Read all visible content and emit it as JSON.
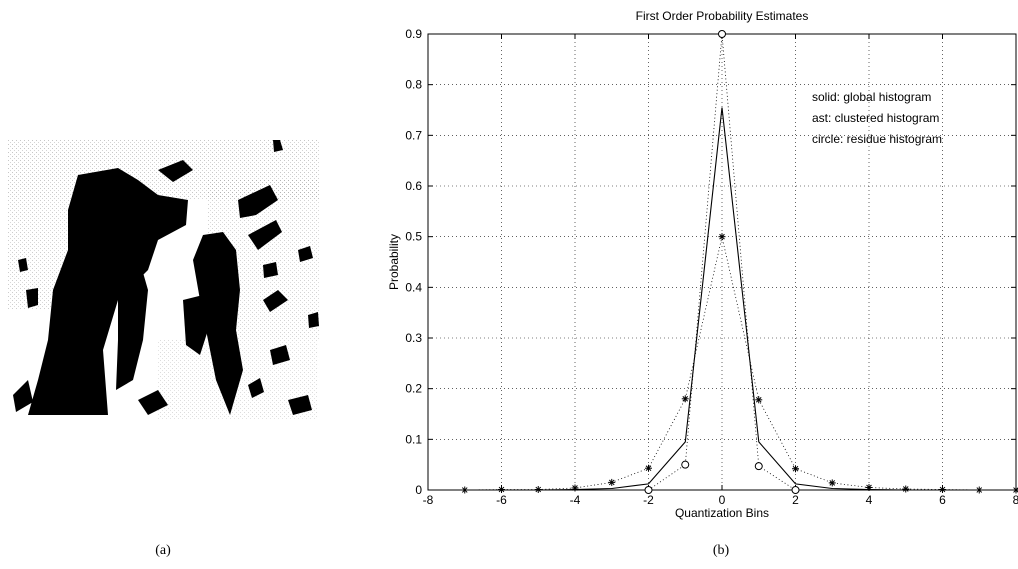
{
  "panels": {
    "a": {
      "caption": "(a)"
    },
    "b": {
      "caption": "(b)"
    }
  },
  "chart_data": {
    "type": "line",
    "title": "First Order Probability Estimates",
    "xlabel": "Quantization Bins",
    "ylabel": "Probability",
    "xlim": [
      -8,
      8
    ],
    "ylim": [
      0,
      0.9
    ],
    "x_ticks": [
      -8,
      -6,
      -4,
      -2,
      0,
      2,
      4,
      6,
      8
    ],
    "x_tick_labels": [
      "-8",
      "-6",
      "-4",
      "-2",
      "0",
      "2",
      "4",
      "6",
      "8"
    ],
    "y_ticks": [
      0,
      0.1,
      0.2,
      0.3,
      0.4,
      0.5,
      0.6,
      0.7,
      0.8,
      0.9
    ],
    "y_tick_labels": [
      "0",
      "0.1",
      "0.2",
      "0.3",
      "0.4",
      "0.5",
      "0.6",
      "0.7",
      "0.8",
      "0.9"
    ],
    "grid": true,
    "legend_position": "top-right",
    "annotations": [
      "solid: global histogram",
      "ast: clustered histogram",
      "circle: residue histogram"
    ],
    "series": [
      {
        "style": "solid",
        "x": [
          -8,
          -7,
          -6,
          -5,
          -4,
          -3,
          -2,
          -1,
          0,
          1,
          2,
          3,
          4,
          5,
          6,
          7,
          8
        ],
        "values": [
          0,
          0,
          0,
          0,
          0.001,
          0.003,
          0.012,
          0.095,
          0.755,
          0.095,
          0.012,
          0.003,
          0.001,
          0,
          0,
          0,
          0
        ]
      },
      {
        "style": "dotted-asterisk",
        "x": [
          -7,
          -6,
          -5,
          -4,
          -3,
          -2,
          -1,
          0,
          1,
          2,
          3,
          4,
          5,
          6,
          7,
          8
        ],
        "values": [
          0,
          0.001,
          0.001,
          0.004,
          0.015,
          0.043,
          0.18,
          0.5,
          0.178,
          0.042,
          0.014,
          0.005,
          0.002,
          0.001,
          0,
          0
        ]
      },
      {
        "style": "dotted-circle",
        "x": [
          -2,
          -1,
          0,
          1,
          2
        ],
        "values": [
          0,
          0.05,
          0.9,
          0.047,
          0
        ]
      }
    ]
  }
}
